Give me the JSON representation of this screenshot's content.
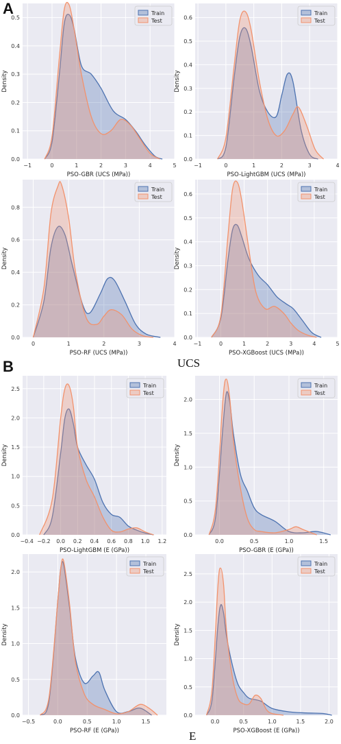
{
  "panels": {
    "A": "A",
    "B": "B"
  },
  "captions": {
    "ucs": "UCS",
    "e": "E"
  },
  "colors": {
    "train": "#4c72b0",
    "test": "#f2926c",
    "background": "#eaeaf2",
    "grid": "#ffffff"
  },
  "chart_data": [
    {
      "type": "area",
      "xlabel": "PSO-GBR (UCS (MPa))",
      "ylabel": "Density",
      "xlim": [
        -1.2,
        5.0
      ],
      "ylim": [
        0,
        0.55
      ],
      "xticks": [
        -1,
        0,
        1,
        2,
        3,
        4,
        5
      ],
      "xtick_labels": [
        "−1",
        "0",
        "1",
        "2",
        "3",
        "4",
        "5"
      ],
      "yticks": [
        0.0,
        0.1,
        0.2,
        0.3,
        0.4,
        0.5
      ],
      "ytick_labels": [
        "0.0",
        "0.1",
        "0.2",
        "0.3",
        "0.4",
        "0.5"
      ],
      "legend": "top-right",
      "grid": true,
      "series": [
        {
          "name": "Train",
          "x": [
            -0.3,
            0,
            0.3,
            0.5,
            0.7,
            0.9,
            1.2,
            1.6,
            2.0,
            2.5,
            3.0,
            3.4,
            3.8,
            4.2,
            4.5
          ],
          "y": [
            0,
            0.06,
            0.3,
            0.48,
            0.51,
            0.46,
            0.33,
            0.3,
            0.25,
            0.17,
            0.14,
            0.1,
            0.05,
            0.01,
            0
          ]
        },
        {
          "name": "Test",
          "x": [
            -0.3,
            0,
            0.3,
            0.5,
            0.7,
            0.9,
            1.2,
            1.6,
            2.0,
            2.4,
            2.8,
            3.2,
            3.6,
            4.0,
            4.4
          ],
          "y": [
            0,
            0.08,
            0.36,
            0.53,
            0.545,
            0.46,
            0.3,
            0.15,
            0.09,
            0.1,
            0.14,
            0.12,
            0.07,
            0.02,
            0
          ]
        }
      ]
    },
    {
      "type": "area",
      "xlabel": "PSO-LightGBM (UCS (MPa))",
      "ylabel": "Density",
      "xlim": [
        -1.1,
        4.0
      ],
      "ylim": [
        0,
        0.66
      ],
      "xticks": [
        -1,
        0,
        1,
        2,
        3,
        4
      ],
      "xtick_labels": [
        "−1",
        "0",
        "1",
        "2",
        "3",
        "4"
      ],
      "yticks": [
        0.0,
        0.1,
        0.2,
        0.3,
        0.4,
        0.5,
        0.6
      ],
      "ytick_labels": [
        "0.0",
        "0.1",
        "0.2",
        "0.3",
        "0.4",
        "0.5",
        "0.6"
      ],
      "legend": "top-right",
      "grid": true,
      "series": [
        {
          "name": "Train",
          "x": [
            -0.3,
            0,
            0.3,
            0.5,
            0.7,
            0.9,
            1.2,
            1.5,
            1.8,
            2.0,
            2.2,
            2.4,
            2.7,
            3.0,
            3.3
          ],
          "y": [
            0,
            0.05,
            0.35,
            0.52,
            0.555,
            0.48,
            0.29,
            0.2,
            0.18,
            0.27,
            0.36,
            0.33,
            0.12,
            0.02,
            0
          ]
        },
        {
          "name": "Test",
          "x": [
            -0.3,
            0,
            0.3,
            0.5,
            0.7,
            0.9,
            1.2,
            1.5,
            1.8,
            2.1,
            2.4,
            2.6,
            2.9,
            3.2,
            3.5
          ],
          "y": [
            0,
            0.09,
            0.4,
            0.59,
            0.625,
            0.55,
            0.33,
            0.17,
            0.1,
            0.12,
            0.19,
            0.22,
            0.14,
            0.04,
            0
          ]
        }
      ]
    },
    {
      "type": "area",
      "xlabel": "PSO-RF (UCS (MPa))",
      "ylabel": "Density",
      "xlim": [
        -0.3,
        4.0
      ],
      "ylim": [
        0,
        0.97
      ],
      "xticks": [
        0,
        1,
        2,
        3,
        4
      ],
      "xtick_labels": [
        "0",
        "1",
        "2",
        "3",
        "4"
      ],
      "yticks": [
        0.0,
        0.2,
        0.4,
        0.6,
        0.8
      ],
      "ytick_labels": [
        "0.0",
        "0.2",
        "0.4",
        "0.6",
        "0.8"
      ],
      "legend": "top-right",
      "grid": true,
      "series": [
        {
          "name": "Train",
          "x": [
            0,
            0.3,
            0.5,
            0.7,
            0.9,
            1.1,
            1.4,
            1.6,
            1.9,
            2.1,
            2.3,
            2.6,
            2.9,
            3.2,
            3.6
          ],
          "y": [
            0,
            0.22,
            0.55,
            0.68,
            0.63,
            0.45,
            0.2,
            0.15,
            0.27,
            0.36,
            0.35,
            0.22,
            0.08,
            0.02,
            0
          ]
        },
        {
          "name": "Test",
          "x": [
            0,
            0.3,
            0.5,
            0.7,
            0.8,
            1.0,
            1.2,
            1.5,
            1.8,
            2.0,
            2.2,
            2.5,
            2.8,
            3.1,
            3.4
          ],
          "y": [
            0,
            0.3,
            0.76,
            0.93,
            0.94,
            0.74,
            0.4,
            0.12,
            0.08,
            0.13,
            0.17,
            0.14,
            0.05,
            0.01,
            0
          ]
        }
      ]
    },
    {
      "type": "area",
      "xlabel": "PSO-XGBoost (UCS (MPa))",
      "ylabel": "Density",
      "xlim": [
        -1.1,
        5.0
      ],
      "ylim": [
        0,
        0.66
      ],
      "xticks": [
        -1,
        0,
        1,
        2,
        3,
        4,
        5
      ],
      "xtick_labels": [
        "−1",
        "0",
        "1",
        "2",
        "3",
        "4",
        "5"
      ],
      "yticks": [
        0.0,
        0.1,
        0.2,
        0.3,
        0.4,
        0.5,
        0.6
      ],
      "ytick_labels": [
        "0.0",
        "0.1",
        "0.2",
        "0.3",
        "0.4",
        "0.5",
        "0.6"
      ],
      "legend": "top-right",
      "grid": true,
      "series": [
        {
          "name": "Train",
          "x": [
            -0.4,
            0,
            0.3,
            0.5,
            0.7,
            0.9,
            1.2,
            1.6,
            2.0,
            2.4,
            2.8,
            3.1,
            3.5,
            3.9,
            4.3
          ],
          "y": [
            0,
            0.08,
            0.32,
            0.45,
            0.47,
            0.42,
            0.33,
            0.26,
            0.22,
            0.17,
            0.14,
            0.12,
            0.07,
            0.02,
            0
          ]
        },
        {
          "name": "Test",
          "x": [
            -0.4,
            0,
            0.3,
            0.5,
            0.7,
            0.9,
            1.2,
            1.5,
            1.9,
            2.3,
            2.7,
            3.0,
            3.3,
            3.7,
            4.1
          ],
          "y": [
            0,
            0.09,
            0.42,
            0.62,
            0.65,
            0.57,
            0.37,
            0.19,
            0.12,
            0.13,
            0.1,
            0.06,
            0.03,
            0.01,
            0
          ]
        }
      ]
    },
    {
      "type": "area",
      "xlabel": "PSO-LightGBM (E (GPa))",
      "ylabel": "Density",
      "xlim": [
        -0.45,
        1.25
      ],
      "ylim": [
        0,
        2.72
      ],
      "xticks": [
        -0.4,
        -0.2,
        0.0,
        0.2,
        0.4,
        0.6,
        0.8,
        1.0,
        1.2
      ],
      "xtick_labels": [
        "−0.4",
        "−0.2",
        "0.0",
        "0.2",
        "0.4",
        "0.6",
        "0.8",
        "1.0",
        "1.2"
      ],
      "yticks": [
        0.0,
        0.5,
        1.0,
        1.5,
        2.0,
        2.5
      ],
      "ytick_labels": [
        "0.0",
        "0.5",
        "1.0",
        "1.5",
        "2.0",
        "2.5"
      ],
      "legend": "top-right",
      "grid": true,
      "series": [
        {
          "name": "Train",
          "x": [
            -0.2,
            -0.1,
            0,
            0.05,
            0.1,
            0.15,
            0.2,
            0.3,
            0.4,
            0.5,
            0.6,
            0.7,
            0.8,
            0.9,
            1.0,
            1.1
          ],
          "y": [
            0,
            0.3,
            1.4,
            2.0,
            2.15,
            1.9,
            1.5,
            1.2,
            0.95,
            0.55,
            0.35,
            0.3,
            0.15,
            0.08,
            0.03,
            0
          ]
        },
        {
          "name": "Test",
          "x": [
            -0.25,
            -0.1,
            0,
            0.05,
            0.1,
            0.15,
            0.2,
            0.3,
            0.4,
            0.5,
            0.6,
            0.7,
            0.8,
            0.9,
            1.0,
            1.1
          ],
          "y": [
            0,
            0.6,
            2.0,
            2.5,
            2.55,
            2.2,
            1.5,
            0.95,
            0.65,
            0.3,
            0.08,
            0.05,
            0.1,
            0.12,
            0.05,
            0
          ]
        }
      ]
    },
    {
      "type": "area",
      "xlabel": "PSO-GBR (E (GPa))",
      "ylabel": "Density",
      "xlim": [
        -0.35,
        1.7
      ],
      "ylim": [
        0,
        2.35
      ],
      "xticks": [
        0.0,
        0.5,
        1.0,
        1.5
      ],
      "xtick_labels": [
        "0.0",
        "0.5",
        "1.0",
        "1.5"
      ],
      "yticks": [
        0.0,
        0.5,
        1.0,
        1.5,
        2.0
      ],
      "ytick_labels": [
        "0.0",
        "0.5",
        "1.0",
        "1.5",
        "2.0"
      ],
      "legend": "top-right",
      "grid": true,
      "series": [
        {
          "name": "Train",
          "x": [
            -0.15,
            -0.05,
            0.05,
            0.1,
            0.15,
            0.2,
            0.3,
            0.4,
            0.5,
            0.6,
            0.8,
            1.0,
            1.2,
            1.4,
            1.6
          ],
          "y": [
            0,
            0.3,
            1.6,
            2.1,
            1.95,
            1.5,
            0.9,
            0.65,
            0.4,
            0.3,
            0.2,
            0.05,
            0.03,
            0.05,
            0
          ]
        },
        {
          "name": "Test",
          "x": [
            -0.15,
            -0.05,
            0.05,
            0.1,
            0.15,
            0.2,
            0.3,
            0.4,
            0.5,
            0.6,
            0.8,
            1.0,
            1.1,
            1.2,
            1.4
          ],
          "y": [
            0,
            0.45,
            2.0,
            2.3,
            2.0,
            1.4,
            0.7,
            0.25,
            0.08,
            0.05,
            0.03,
            0.08,
            0.12,
            0.08,
            0
          ]
        }
      ]
    },
    {
      "type": "area",
      "xlabel": "PSO-RF (E (GPa))",
      "ylabel": "Density",
      "xlim": [
        -0.6,
        1.85
      ],
      "ylim": [
        0,
        2.25
      ],
      "xticks": [
        -0.5,
        0.0,
        0.5,
        1.0,
        1.5
      ],
      "xtick_labels": [
        "−0.5",
        "0.0",
        "0.5",
        "1.0",
        "1.5"
      ],
      "yticks": [
        0.0,
        0.5,
        1.0,
        1.5,
        2.0
      ],
      "ytick_labels": [
        "0.0",
        "0.5",
        "1.0",
        "1.5",
        "2.0"
      ],
      "legend": "top-right",
      "grid": true,
      "series": [
        {
          "name": "Train",
          "x": [
            -0.3,
            -0.15,
            0,
            0.05,
            0.1,
            0.2,
            0.3,
            0.45,
            0.6,
            0.7,
            0.8,
            1.0,
            1.2,
            1.4,
            1.6
          ],
          "y": [
            0,
            0.2,
            1.6,
            2.05,
            2.1,
            1.5,
            0.8,
            0.45,
            0.55,
            0.6,
            0.35,
            0.05,
            0.05,
            0.1,
            0
          ]
        },
        {
          "name": "Test",
          "x": [
            -0.3,
            -0.15,
            0,
            0.05,
            0.1,
            0.2,
            0.3,
            0.45,
            0.6,
            0.8,
            1.0,
            1.2,
            1.4,
            1.55,
            1.7
          ],
          "y": [
            0,
            0.25,
            1.6,
            2.05,
            2.15,
            1.55,
            0.75,
            0.3,
            0.15,
            0.08,
            0.02,
            0.05,
            0.15,
            0.1,
            0
          ]
        }
      ]
    },
    {
      "type": "area",
      "xlabel": "PSO-XGBoost (E (GPa))",
      "ylabel": "Density",
      "xlim": [
        -0.35,
        2.15
      ],
      "ylim": [
        0,
        2.85
      ],
      "xticks": [
        0.0,
        0.5,
        1.0,
        1.5,
        2.0
      ],
      "xtick_labels": [
        "0.0",
        "0.5",
        "1.0",
        "1.5",
        "2.0"
      ],
      "yticks": [
        0.0,
        0.5,
        1.0,
        1.5,
        2.0,
        2.5
      ],
      "ytick_labels": [
        "0.0",
        "0.5",
        "1.0",
        "1.5",
        "2.0",
        "2.5"
      ],
      "legend": "top-right",
      "grid": true,
      "series": [
        {
          "name": "Train",
          "x": [
            -0.15,
            -0.05,
            0.05,
            0.1,
            0.15,
            0.2,
            0.3,
            0.4,
            0.5,
            0.6,
            0.8,
            1.0,
            1.3,
            1.6,
            1.9,
            2.05
          ],
          "y": [
            0,
            0.3,
            1.6,
            1.95,
            1.8,
            1.4,
            0.9,
            0.55,
            0.4,
            0.3,
            0.25,
            0.12,
            0.06,
            0.04,
            0.03,
            0
          ]
        },
        {
          "name": "Test",
          "x": [
            -0.15,
            -0.05,
            0.05,
            0.1,
            0.15,
            0.2,
            0.3,
            0.4,
            0.5,
            0.6,
            0.7,
            0.8,
            0.9,
            1.0,
            1.2
          ],
          "y": [
            0,
            0.5,
            2.3,
            2.6,
            2.3,
            1.5,
            0.7,
            0.3,
            0.2,
            0.2,
            0.35,
            0.3,
            0.1,
            0.03,
            0
          ]
        }
      ]
    }
  ]
}
